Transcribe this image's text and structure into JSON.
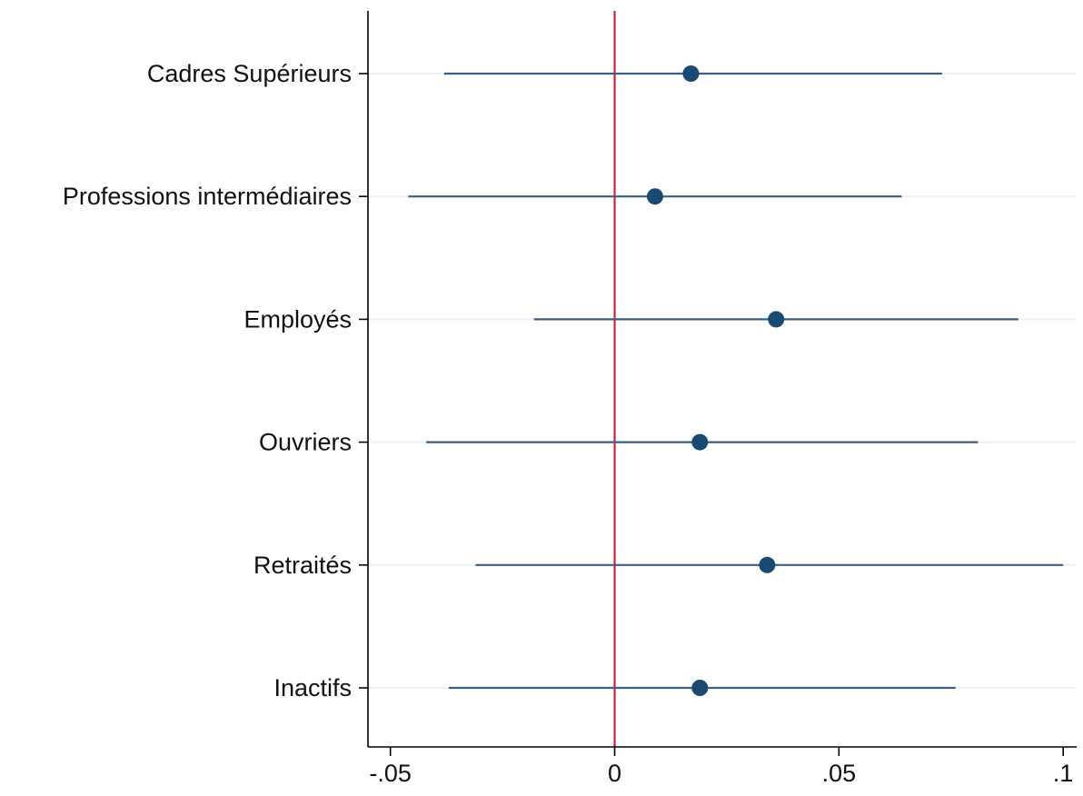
{
  "chart_data": {
    "type": "scatter",
    "subtype": "coefficient-plot",
    "title": "",
    "xlabel": "",
    "ylabel": "",
    "xlim": [
      -0.055,
      0.103
    ],
    "x_ticks": [
      -0.05,
      0,
      0.05,
      0.1
    ],
    "x_tick_labels": [
      "-.05",
      "0",
      ".05",
      ".1"
    ],
    "reference_line_x": 0,
    "grid": true,
    "legend": "none",
    "colors": {
      "point": "#1a4a72",
      "ci": "#3a5f80",
      "reference": "#c8243a",
      "grid": "#eef2f5"
    },
    "categories": [
      "Cadres Supérieurs",
      "Professions intermédiaires",
      "Employés",
      "Ouvriers",
      "Retraités",
      "Inactifs"
    ],
    "estimates": [
      0.017,
      0.009,
      0.036,
      0.019,
      0.034,
      0.019
    ],
    "ci_low": [
      -0.038,
      -0.046,
      -0.018,
      -0.042,
      -0.031,
      -0.037
    ],
    "ci_high": [
      0.073,
      0.064,
      0.09,
      0.081,
      0.1,
      0.076
    ]
  }
}
